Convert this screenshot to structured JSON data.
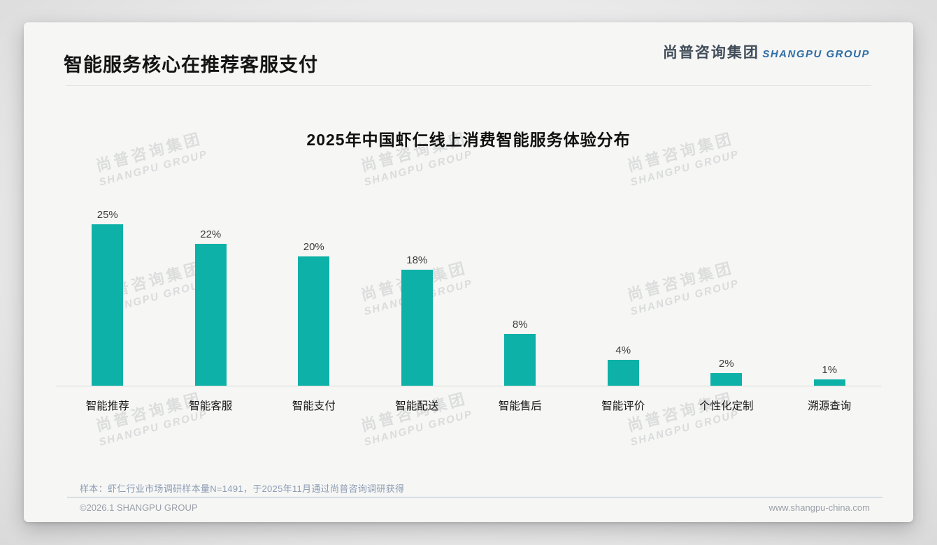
{
  "header": {
    "title": "智能服务核心在推荐客服支付",
    "logo_cn": "尚普咨询集团",
    "logo_en": "SHANGPU GROUP"
  },
  "watermark": {
    "line1": "尚普咨询集团",
    "line2": "SHANGPU GROUP"
  },
  "chart_data": {
    "type": "bar",
    "title": "2025年中国虾仁线上消费智能服务体验分布",
    "categories": [
      "智能推荐",
      "智能客服",
      "智能支付",
      "智能配送",
      "智能售后",
      "智能评价",
      "个性化定制",
      "溯源查询"
    ],
    "values": [
      25,
      22,
      20,
      18,
      8,
      4,
      2,
      1
    ],
    "value_labels": [
      "25%",
      "22%",
      "20%",
      "18%",
      "8%",
      "4%",
      "2%",
      "1%"
    ],
    "unit": "%",
    "bar_color": "#0db1a7",
    "ylim": [
      0,
      25
    ],
    "grid": false,
    "legend": false,
    "xlabel": "",
    "ylabel": ""
  },
  "footer": {
    "note": "样本：虾仁行业市场调研样本量N=1491，于2025年11月通过尚普咨询调研获得",
    "copyright": "©2026.1 SHANGPU GROUP",
    "website": "www.shangpu-china.com"
  }
}
